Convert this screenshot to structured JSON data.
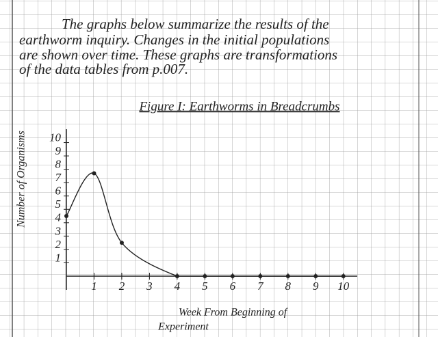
{
  "notes": [
    "The graphs below summarize the results of the",
    "earthworm inquiry. Changes in the initial populations",
    "are shown over time. These graphs are transformations",
    "of the data tables from p.007."
  ],
  "chart_data": {
    "type": "line",
    "title": "Figure I: Earthworms in Breadcrumbs",
    "ylabel": "Number of Organisms",
    "xlabel": [
      "Week From Beginning of",
      "Experiment"
    ],
    "x": [
      0,
      1,
      2,
      4,
      5,
      6,
      7,
      8,
      9,
      10
    ],
    "values": [
      4.5,
      7.7,
      2.5,
      0,
      0,
      0,
      0,
      0,
      0,
      0
    ],
    "color": "#222",
    "xlim": [
      0,
      10.5
    ],
    "ylim": [
      0,
      11
    ],
    "xticks": [
      1,
      2,
      3,
      4,
      5,
      6,
      7,
      8,
      9,
      10
    ],
    "yticks": [
      1,
      2,
      3,
      4,
      5,
      6,
      7,
      8,
      9,
      10
    ]
  }
}
